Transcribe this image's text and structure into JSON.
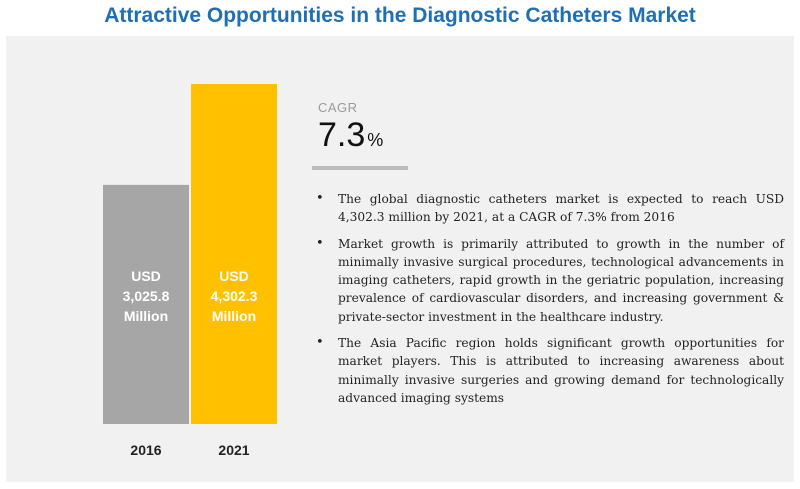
{
  "title": "Attractive Opportunities in the Diagnostic Catheters Market",
  "chart_data": {
    "type": "bar",
    "categories": [
      "2016",
      "2021"
    ],
    "values": [
      3025.8,
      4302.3
    ],
    "colors": [
      "#a6a6a6",
      "#ffc000"
    ],
    "data_labels": [
      [
        "USD",
        "3,025.8",
        "Million"
      ],
      [
        "USD",
        "4,302.3",
        "Million"
      ]
    ],
    "xlabel": "",
    "ylabel": "",
    "ylim": [
      0,
      4302.3
    ],
    "grid": false
  },
  "cagr": {
    "label": "CAGR",
    "value": "7.3",
    "unit": "%"
  },
  "bullets": [
    "The global diagnostic catheters market is expected to reach USD 4,302.3 million by 2021, at a CAGR of 7.3% from 2016",
    "Market growth is primarily attributed to growth in the number of minimally invasive surgical procedures, technological advancements in imaging catheters, rapid growth in the geriatric population, increasing prevalence of cardiovascular disorders, and increasing government & private-sector investment in the healthcare industry.",
    "The Asia Pacific region holds significant growth opportunities for market players. This is attributed to increasing awareness about minimally invasive surgeries and growing demand for technologically advanced imaging systems"
  ]
}
